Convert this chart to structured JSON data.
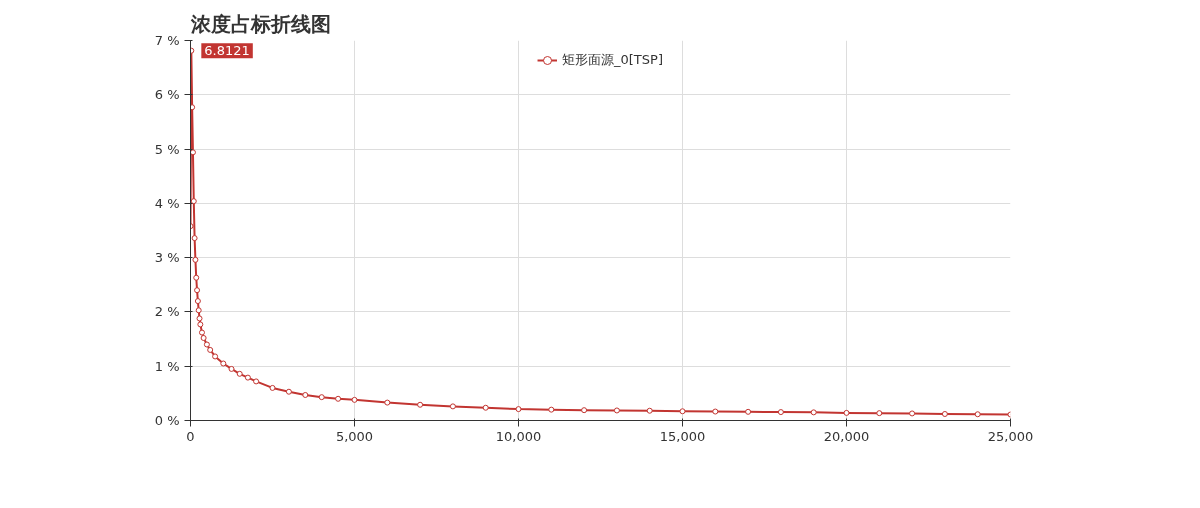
{
  "chart_data": {
    "type": "line",
    "title": "浓度占标折线图",
    "x": [
      0,
      25,
      50,
      75,
      100,
      125,
      150,
      175,
      200,
      225,
      250,
      275,
      300,
      350,
      400,
      500,
      600,
      750,
      1000,
      1250,
      1500,
      1750,
      2000,
      2500,
      3000,
      3500,
      4000,
      4500,
      5000,
      6000,
      7000,
      8000,
      9000,
      10000,
      11000,
      12000,
      13000,
      14000,
      15000,
      16000,
      17000,
      18000,
      19000,
      20000,
      21000,
      22000,
      23000,
      24000,
      25000
    ],
    "series": [
      {
        "name": "矩形面源_0[TSP]",
        "color": "#c23531",
        "values": [
          3.58,
          6.8121,
          5.77,
          4.94,
          4.04,
          3.36,
          2.96,
          2.63,
          2.4,
          2.2,
          2.03,
          1.88,
          1.77,
          1.62,
          1.52,
          1.4,
          1.3,
          1.18,
          1.05,
          0.95,
          0.86,
          0.79,
          0.72,
          0.6,
          0.53,
          0.47,
          0.43,
          0.4,
          0.38,
          0.33,
          0.29,
          0.26,
          0.235,
          0.21,
          0.2,
          0.19,
          0.185,
          0.18,
          0.17,
          0.165,
          0.16,
          0.155,
          0.15,
          0.14,
          0.135,
          0.13,
          0.12,
          0.115,
          0.11
        ]
      }
    ],
    "xlim": [
      0,
      25000
    ],
    "ylim": [
      0,
      7
    ],
    "xticks": [
      0,
      {
        "value": 5000,
        "label": "5,000"
      },
      {
        "value": 10000,
        "label": "10,000"
      },
      {
        "value": 15000,
        "label": "15,000"
      },
      {
        "value": 20000,
        "label": "20,000"
      },
      {
        "value": 25000,
        "label": "25,000"
      }
    ],
    "yticks": [
      {
        "value": 0,
        "label": "0 %"
      },
      {
        "value": 1,
        "label": "1 %"
      },
      {
        "value": 2,
        "label": "2 %"
      },
      {
        "value": 3,
        "label": "3 %"
      },
      {
        "value": 4,
        "label": "4 %"
      },
      {
        "value": 5,
        "label": "5 %"
      },
      {
        "value": 6,
        "label": "6 %"
      },
      {
        "value": 7,
        "label": "7 %"
      }
    ],
    "annotations": [
      {
        "text": "6.8121",
        "x": 25,
        "y": 6.8121
      }
    ],
    "grid": true,
    "legend": "top",
    "marker": "circle",
    "line_style": "solid"
  }
}
